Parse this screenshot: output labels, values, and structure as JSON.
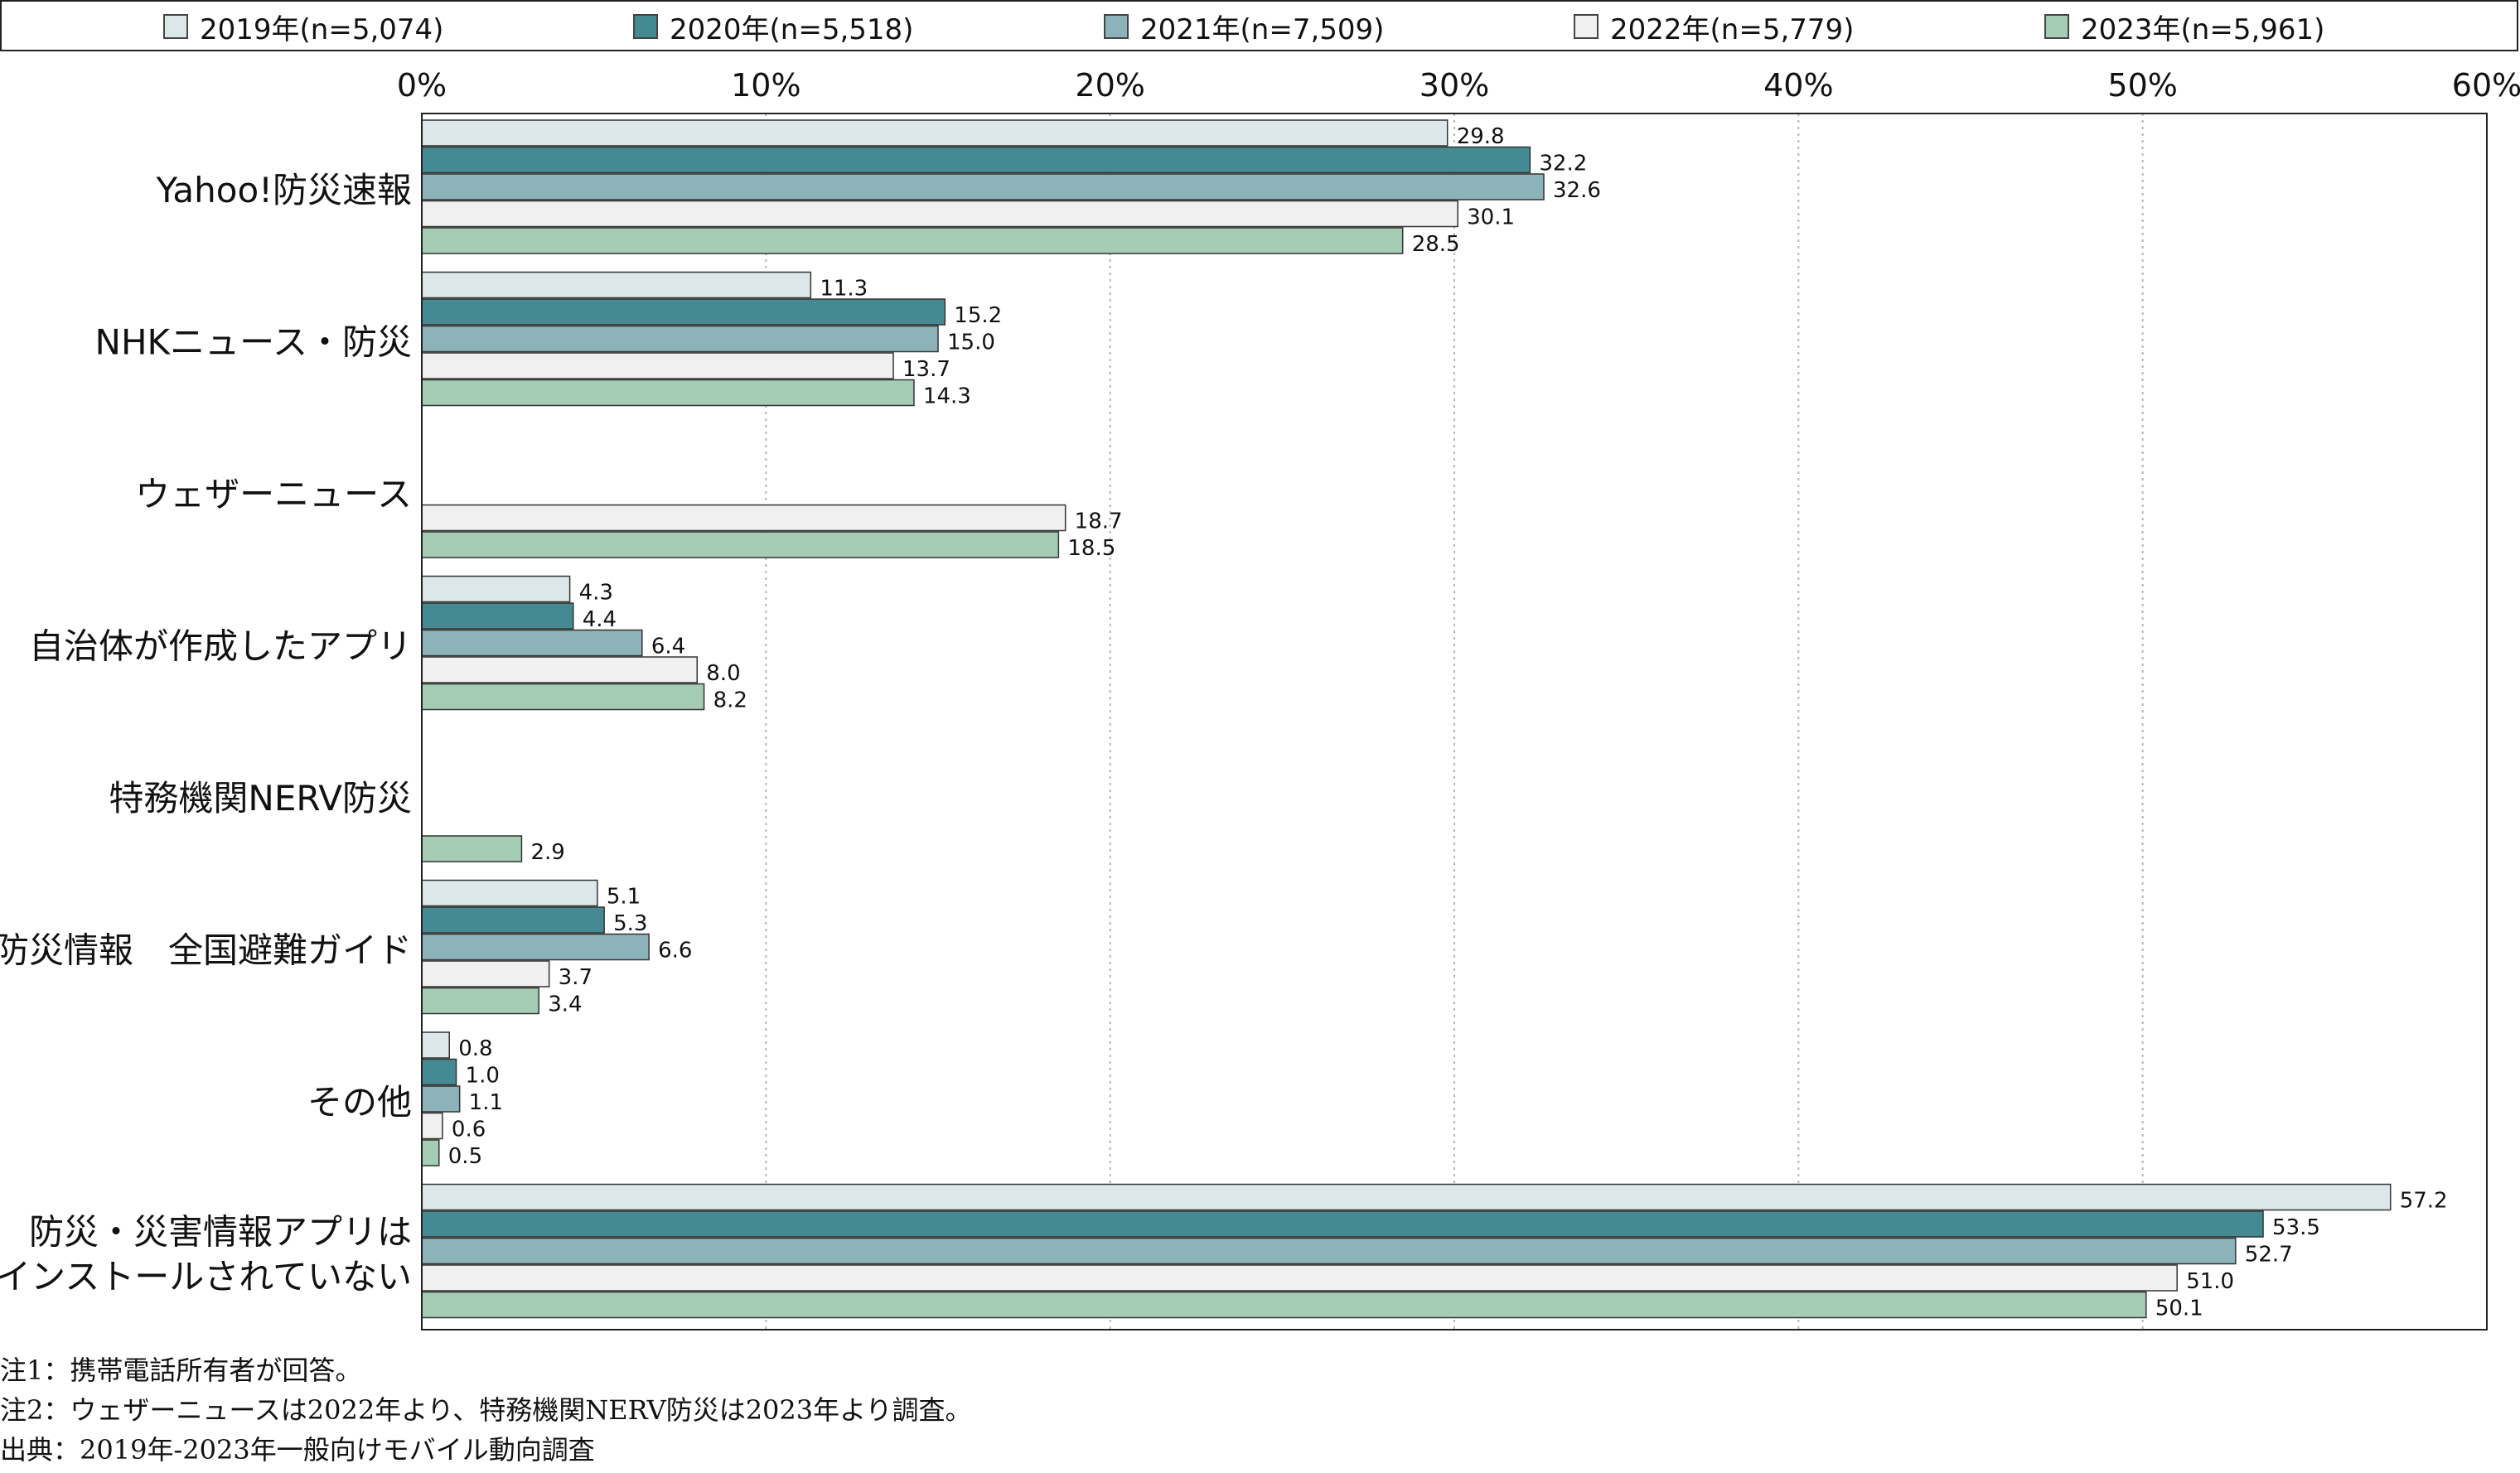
{
  "legend": [
    {
      "label": "2019年(n=5,074)",
      "color": "#dbe7e8"
    },
    {
      "label": "2020年(n=5,518)",
      "color": "#458a93"
    },
    {
      "label": "2021年(n=7,509)",
      "color": "#8cb3b9"
    },
    {
      "label": "2022年(n=5,779)",
      "color": "#f0f0f0"
    },
    {
      "label": "2023年(n=5,961)",
      "color": "#a5ccb4"
    }
  ],
  "chart_data": {
    "type": "bar",
    "orientation": "horizontal",
    "xlim": [
      0,
      60
    ],
    "x_ticks": [
      "0%",
      "10%",
      "20%",
      "30%",
      "40%",
      "50%",
      "60%"
    ],
    "grid": "vertical dotted",
    "categories": [
      "Yahoo!防災速報",
      "NHKニュース・防災",
      "ウェザーニュース",
      "自治体が作成したアプリ",
      "特務機関NERV防災",
      "防災情報　全国避難ガイド",
      "その他",
      "防災・災害情報アプリは\nインストールされていない"
    ],
    "series": [
      {
        "name": "2019年(n=5,074)",
        "values": [
          29.8,
          11.3,
          null,
          4.3,
          null,
          5.1,
          0.8,
          57.2
        ]
      },
      {
        "name": "2020年(n=5,518)",
        "values": [
          32.2,
          15.2,
          null,
          4.4,
          null,
          5.3,
          1.0,
          53.5
        ]
      },
      {
        "name": "2021年(n=7,509)",
        "values": [
          32.6,
          15.0,
          null,
          6.4,
          null,
          6.6,
          1.1,
          52.7
        ]
      },
      {
        "name": "2022年(n=5,779)",
        "values": [
          30.1,
          13.7,
          18.7,
          8.0,
          null,
          3.7,
          0.6,
          51.0
        ]
      },
      {
        "name": "2023年(n=5,961)",
        "values": [
          28.5,
          14.3,
          18.5,
          8.2,
          2.9,
          3.4,
          0.5,
          50.1
        ]
      }
    ]
  },
  "notes": [
    "注1：携帯電話所有者が回答。",
    "注2：ウェザーニュースは2022年より、特務機関NERV防災は2023年より調査。",
    "出典：2019年-2023年一般向けモバイル動向調査"
  ]
}
